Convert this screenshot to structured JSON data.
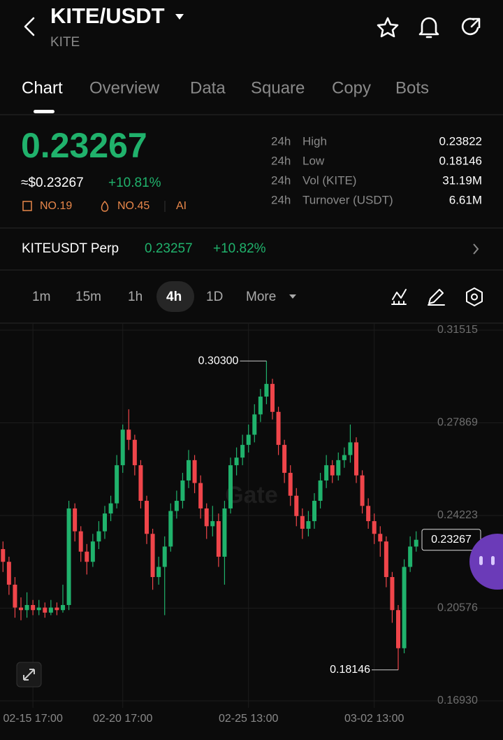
{
  "header": {
    "title": "KITE/USDT",
    "subtitle": "KITE"
  },
  "tabs": [
    "Chart",
    "Overview",
    "Data",
    "Square",
    "Copy",
    "Bots"
  ],
  "price": {
    "last": "0.23267",
    "usd": "≈$0.23267",
    "change": "+10.81%",
    "rank1": "NO.19",
    "rank2": "NO.45",
    "ai": "AI"
  },
  "stats": [
    [
      "24h",
      "High",
      "0.23822"
    ],
    [
      "24h",
      "Low",
      "0.18146"
    ],
    [
      "24h",
      "Vol (KITE)",
      "31.19M"
    ],
    [
      "24h",
      "Turnover (USDT)",
      "6.61M"
    ]
  ],
  "perp": {
    "name": "KITEUSDT Perp",
    "price": "0.23257",
    "change": "+10.82%"
  },
  "timeframes": [
    "1m",
    "15m",
    "1h",
    "4h",
    "1D",
    "More"
  ],
  "chart_data": {
    "type": "candlestick",
    "watermark": "Gate",
    "up_color": "#20b26c",
    "down_color": "#ef454a",
    "categories": [
      null,
      null,
      null,
      null,
      null,
      "02-15 17:00",
      null,
      null,
      null,
      null,
      null,
      null,
      null,
      null,
      null,
      null,
      null,
      null,
      null,
      null,
      "02-20 17:00",
      null,
      null,
      null,
      null,
      null,
      null,
      null,
      null,
      null,
      null,
      null,
      null,
      null,
      null,
      null,
      null,
      null,
      null,
      null,
      null,
      "02-25 13:00",
      null,
      null,
      null,
      null,
      null,
      null,
      null,
      null,
      null,
      null,
      null,
      null,
      null,
      null,
      null,
      null,
      null,
      null,
      null,
      null,
      "03-02 13:00",
      null,
      null,
      null,
      null,
      null,
      null,
      null
    ],
    "open": [
      0.229,
      0.224,
      0.215,
      0.206,
      0.205,
      0.207,
      0.205,
      0.206,
      0.204,
      0.206,
      0.205,
      0.207,
      0.245,
      0.236,
      0.228,
      0.224,
      0.232,
      0.236,
      0.243,
      0.247,
      0.262,
      0.276,
      0.272,
      0.262,
      0.248,
      0.235,
      0.218,
      0.222,
      0.23,
      0.244,
      0.248,
      0.256,
      0.264,
      0.255,
      0.245,
      0.238,
      0.24,
      0.226,
      0.245,
      0.262,
      0.265,
      0.27,
      0.274,
      0.282,
      0.289,
      0.294,
      0.283,
      0.27,
      0.259,
      0.25,
      0.242,
      0.237,
      0.24,
      0.248,
      0.256,
      0.262,
      0.258,
      0.264,
      0.266,
      0.271,
      0.258,
      0.246,
      0.24,
      0.235,
      0.232,
      0.218,
      0.205,
      0.19,
      0.222,
      0.23
    ],
    "high": [
      0.232,
      0.226,
      0.218,
      0.21,
      0.212,
      0.209,
      0.209,
      0.208,
      0.209,
      0.208,
      0.215,
      0.248,
      0.247,
      0.238,
      0.231,
      0.235,
      0.24,
      0.246,
      0.25,
      0.266,
      0.278,
      0.284,
      0.274,
      0.264,
      0.25,
      0.237,
      0.226,
      0.234,
      0.247,
      0.252,
      0.259,
      0.268,
      0.266,
      0.258,
      0.247,
      0.246,
      0.243,
      0.248,
      0.265,
      0.269,
      0.274,
      0.278,
      0.286,
      0.292,
      0.303,
      0.296,
      0.285,
      0.272,
      0.262,
      0.253,
      0.245,
      0.244,
      0.251,
      0.259,
      0.266,
      0.264,
      0.267,
      0.269,
      0.278,
      0.273,
      0.26,
      0.249,
      0.243,
      0.238,
      0.234,
      0.22,
      0.207,
      0.225,
      0.234,
      0.236
    ],
    "low": [
      0.22,
      0.211,
      0.202,
      0.201,
      0.202,
      0.203,
      0.203,
      0.202,
      0.203,
      0.203,
      0.204,
      0.205,
      0.232,
      0.224,
      0.219,
      0.222,
      0.229,
      0.233,
      0.24,
      0.245,
      0.259,
      0.268,
      0.258,
      0.245,
      0.231,
      0.213,
      0.215,
      0.203,
      0.228,
      0.241,
      0.245,
      0.253,
      0.251,
      0.241,
      0.233,
      0.234,
      0.222,
      0.215,
      0.243,
      0.258,
      0.262,
      0.267,
      0.271,
      0.279,
      0.286,
      0.28,
      0.266,
      0.255,
      0.246,
      0.238,
      0.233,
      0.234,
      0.237,
      0.245,
      0.253,
      0.255,
      0.256,
      0.261,
      0.263,
      0.255,
      0.243,
      0.237,
      0.231,
      0.226,
      0.214,
      0.2,
      0.18146,
      0.188,
      0.22,
      0.228
    ],
    "close": [
      0.224,
      0.215,
      0.206,
      0.205,
      0.207,
      0.205,
      0.206,
      0.204,
      0.206,
      0.205,
      0.207,
      0.245,
      0.236,
      0.228,
      0.224,
      0.232,
      0.236,
      0.243,
      0.247,
      0.262,
      0.276,
      0.272,
      0.262,
      0.248,
      0.235,
      0.218,
      0.222,
      0.23,
      0.244,
      0.248,
      0.256,
      0.264,
      0.255,
      0.245,
      0.238,
      0.24,
      0.226,
      0.245,
      0.262,
      0.265,
      0.27,
      0.274,
      0.282,
      0.289,
      0.294,
      0.283,
      0.27,
      0.259,
      0.25,
      0.242,
      0.237,
      0.24,
      0.248,
      0.256,
      0.262,
      0.258,
      0.264,
      0.266,
      0.271,
      0.258,
      0.246,
      0.24,
      0.235,
      0.232,
      0.218,
      0.205,
      0.19,
      0.222,
      0.23,
      0.23267
    ],
    "max_label": "0.30300",
    "min_label": "0.18146",
    "last_label": "0.23267",
    "ylim": [
      0.1693,
      0.31515
    ],
    "yticks": [
      0.31515,
      0.27869,
      0.24223,
      0.20576,
      {
        "value": 0.1693,
        "label": "0.16930"
      }
    ],
    "grid": true
  }
}
